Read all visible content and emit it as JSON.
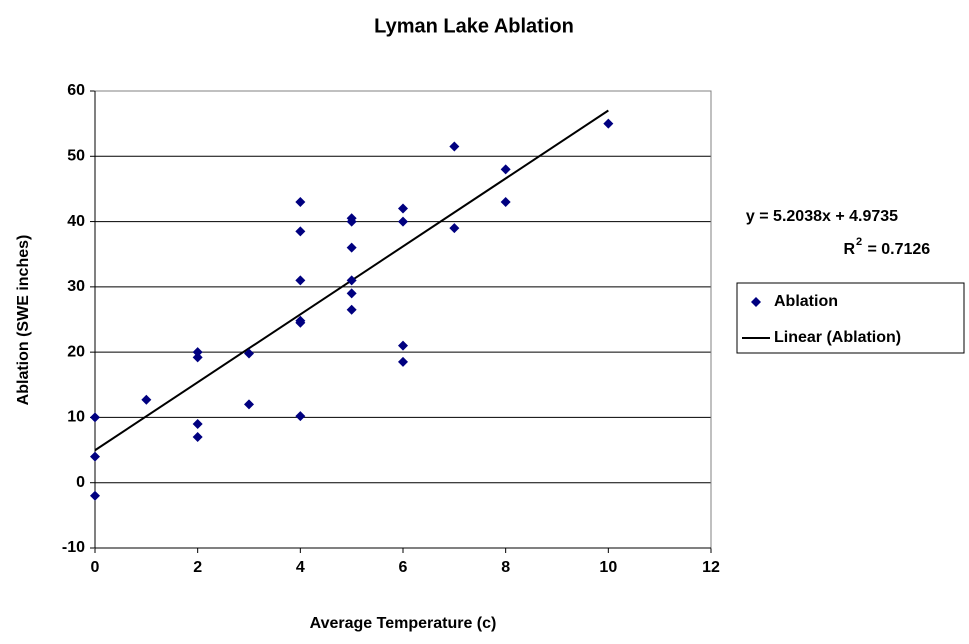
{
  "chart_data": {
    "type": "scatter",
    "title": "Lyman Lake  Ablation",
    "x_label": "Average Temperature (c)",
    "y_label": "Ablation (SWE inches)",
    "series": [
      {
        "name": "Ablation",
        "color": "#000080",
        "x": [
          0,
          0,
          0,
          1,
          2,
          2,
          2,
          2,
          3,
          3,
          4,
          4,
          4,
          4,
          4,
          4,
          5,
          5,
          5,
          5,
          5,
          5,
          6,
          6,
          6,
          6,
          7,
          7,
          8,
          8,
          10
        ],
        "values": [
          10,
          4,
          -2,
          12.7,
          20,
          19.2,
          9,
          7,
          19.8,
          12,
          43,
          38.5,
          31,
          24.8,
          24.5,
          10.2,
          40.5,
          40,
          36,
          31,
          29,
          26.5,
          42,
          40,
          21,
          18.5,
          51.5,
          39,
          48,
          43,
          55
        ]
      }
    ],
    "trendline": {
      "name": "Linear (Ablation)",
      "color": "#000000",
      "slope": 5.2038,
      "intercept": 4.9735,
      "equation": "y = 5.2038x + 4.9735",
      "r2_symbol": "R",
      "r2_exponent": "2",
      "r2_text": " = 0.7126"
    },
    "xlim": [
      0,
      12
    ],
    "xticks": [
      0,
      2,
      4,
      6,
      8,
      10,
      12
    ],
    "ylim": [
      -10,
      60
    ],
    "yticks": [
      -10,
      0,
      10,
      20,
      30,
      40,
      50,
      60
    ],
    "grid": true
  }
}
